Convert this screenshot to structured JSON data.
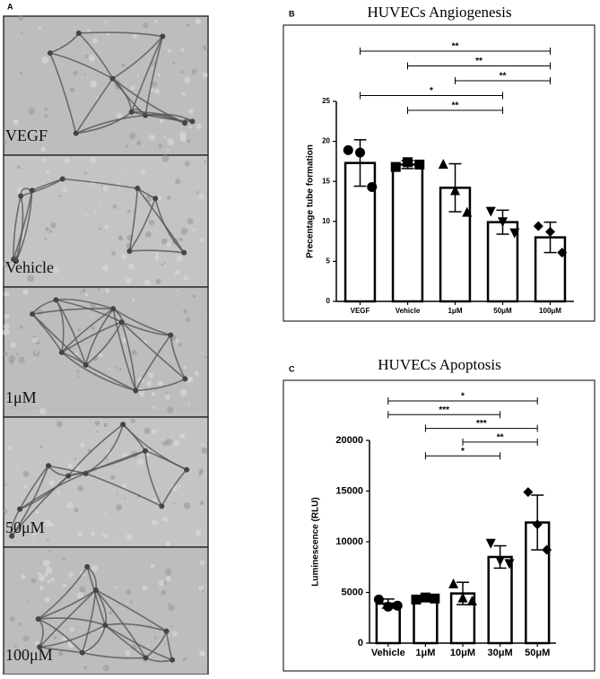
{
  "panel_a": {
    "label": "A",
    "image_labels": [
      "VEGF",
      "Vehicle",
      "1μM",
      "50μM",
      "100μM"
    ]
  },
  "chart_data": [
    {
      "type": "bar",
      "panel_label": "B",
      "title": "HUVECs Angiogenesis",
      "y_label": "Precentage tube formation",
      "categories": [
        "VEGF",
        "Vehicle",
        "1μM",
        "50μM",
        "100μM"
      ],
      "values": [
        17.3,
        17.1,
        14.2,
        9.9,
        8.0
      ],
      "errors": [
        2.9,
        0.5,
        3.0,
        1.5,
        1.9
      ],
      "points": [
        [
          18.9,
          18.6,
          14.3
        ],
        [
          16.8,
          17.4,
          17.1
        ],
        [
          17.2,
          13.9,
          11.2
        ],
        [
          11.2,
          9.9,
          8.5
        ],
        [
          9.4,
          8.7,
          6.1
        ]
      ],
      "markers": [
        "circle",
        "square",
        "triangle-up",
        "triangle-down",
        "diamond"
      ],
      "color": "#000000",
      "ylim": [
        0,
        25
      ],
      "yticks": [
        0,
        5,
        10,
        15,
        20,
        25
      ],
      "significance": [
        {
          "from": "VEGF",
          "to": "100μM",
          "label": "**"
        },
        {
          "from": "Vehicle",
          "to": "100μM",
          "label": "**"
        },
        {
          "from": "1μM",
          "to": "100μM",
          "label": "**"
        },
        {
          "from": "VEGF",
          "to": "50μM",
          "label": "*"
        },
        {
          "from": "Vehicle",
          "to": "50μM",
          "label": "**"
        }
      ]
    },
    {
      "type": "bar",
      "panel_label": "C",
      "title": "HUVECs Apoptosis",
      "y_label": "Luminescence (RLU)",
      "categories": [
        "Vehicle",
        "1μM",
        "10μM",
        "30μM",
        "50μM"
      ],
      "values": [
        3900,
        4400,
        4900,
        8500,
        11900
      ],
      "errors": [
        450,
        150,
        1100,
        1100,
        2700
      ],
      "points": [
        [
          4300,
          3600,
          3700
        ],
        [
          4300,
          4500,
          4400
        ],
        [
          5900,
          4500,
          4200
        ],
        [
          9800,
          8100,
          7800
        ],
        [
          14900,
          11700,
          9200
        ]
      ],
      "markers": [
        "circle",
        "square",
        "triangle-up",
        "triangle-down",
        "diamond"
      ],
      "color": "#000000",
      "ylim": [
        0,
        20000
      ],
      "yticks": [
        0,
        5000,
        10000,
        15000,
        20000
      ],
      "significance": [
        {
          "from": "Vehicle",
          "to": "50μM",
          "label": "*"
        },
        {
          "from": "Vehicle",
          "to": "30μM",
          "label": "***"
        },
        {
          "from": "1μM",
          "to": "50μM",
          "label": "***"
        },
        {
          "from": "10μM",
          "to": "50μM",
          "label": "**"
        },
        {
          "from": "1μM",
          "to": "30μM",
          "label": "*"
        }
      ]
    }
  ]
}
